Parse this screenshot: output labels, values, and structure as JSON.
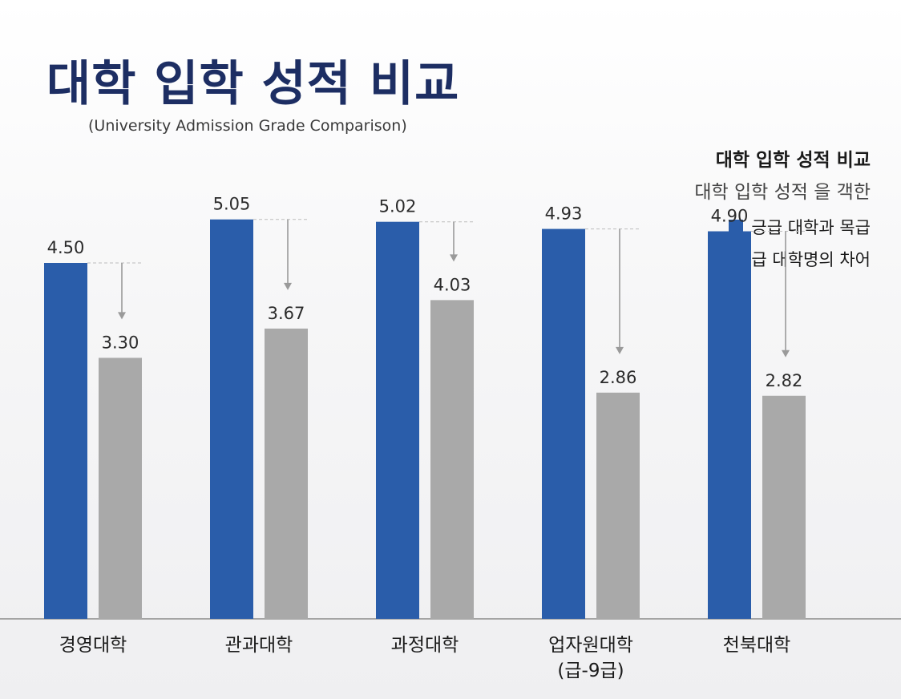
{
  "header": {
    "title": "대학 입학 성적 비교",
    "subtitle": "(University Admission Grade Comparison)"
  },
  "legend": {
    "title": "대학 입학 성적 비교",
    "subtitle": "대학 입학 성적 을 객한",
    "items": [
      {
        "label": "긍급 대학과 목급",
        "color": "#2a5daa"
      },
      {
        "label": "등급 대학명의 차어",
        "color": "#a9a9a9"
      }
    ]
  },
  "chart_data": {
    "type": "bar",
    "title": "대학 입학 성적 비교",
    "categories": [
      "경영대학",
      "관과대학",
      "과정대학",
      "업자원대학\n(급-9급)",
      "천북대학"
    ],
    "series": [
      {
        "name": "긍급 대학과 목급",
        "values": [
          4.5,
          5.05,
          5.02,
          4.93,
          4.9
        ],
        "color": "#2a5daa"
      },
      {
        "name": "등급 대학명의 차어",
        "values": [
          3.3,
          3.67,
          4.03,
          2.86,
          2.82
        ],
        "color": "#a9a9a9"
      }
    ],
    "value_labels": [
      [
        "4.50",
        "5.05",
        "5.02",
        "4.93",
        "4.90"
      ],
      [
        "3.30",
        "3.67",
        "4.03",
        "2.86",
        "2.82"
      ]
    ],
    "grid": false,
    "legend_position": "top-right"
  }
}
